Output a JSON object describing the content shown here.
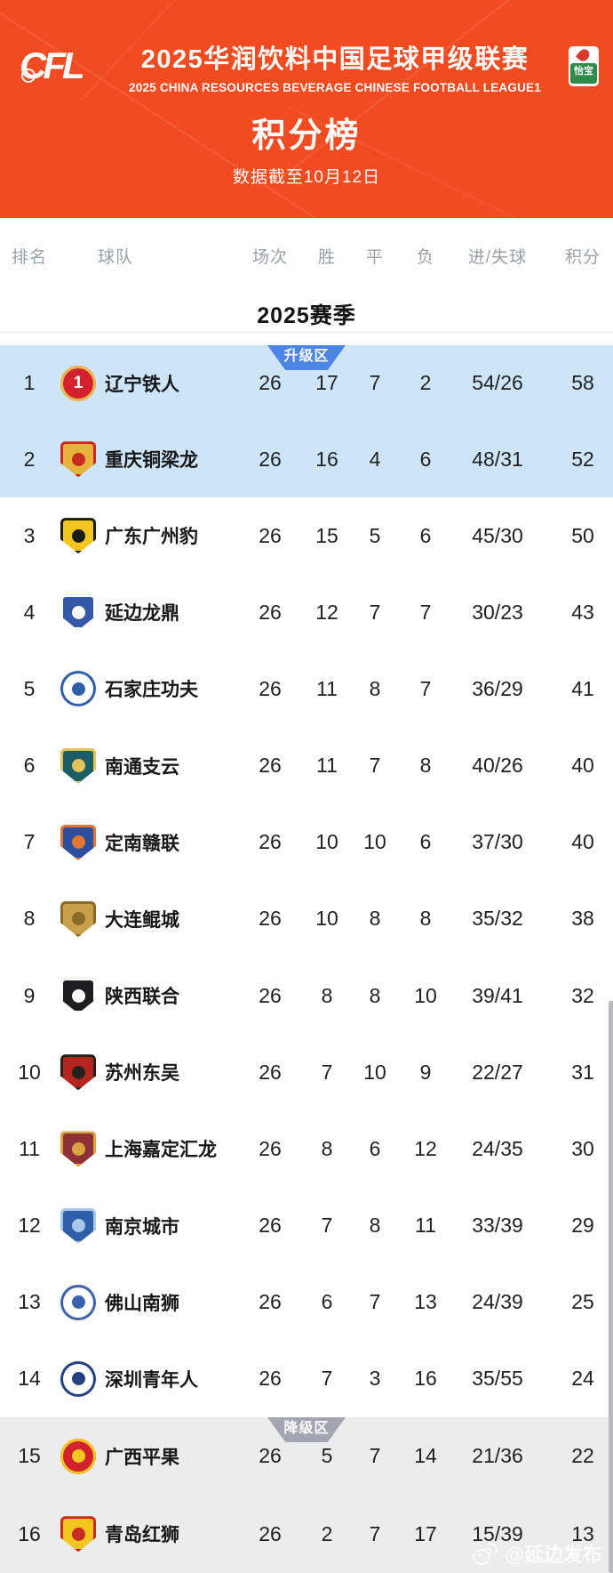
{
  "header": {
    "logo_text": "CFL",
    "title": "2025华润饮料中国足球甲级联赛",
    "subtitle": "2025 CHINA RESOURCES BEVERAGE CHINESE FOOTBALL LEAGUE1",
    "sponsor_name": "怡宝",
    "section_title": "积分榜",
    "data_note": "数据截至10月12日",
    "bg_color": "#F14B21"
  },
  "table": {
    "columns": [
      "排名",
      "球队",
      "场次",
      "胜",
      "平",
      "负",
      "进/失球",
      "积分"
    ],
    "season_title": "2025赛季",
    "promotion_label": "升级区",
    "relegation_label": "降级区",
    "zone_colors": {
      "promotion_badge": "#4C86E4",
      "promotion_bg": "#CEE5F8",
      "relegation_badge": "#A3A6B0",
      "relegation_bg": "#ECECEF"
    },
    "rows": [
      {
        "rank": "1",
        "team": "辽宁铁人",
        "played": "26",
        "wins": "17",
        "draws": "7",
        "losses": "2",
        "goals": "54/26",
        "points": "58",
        "zone": "promotion",
        "logo": {
          "shape": "circle",
          "c1": "#D2222D",
          "c2": "#E9B949",
          "label": "1"
        }
      },
      {
        "rank": "2",
        "team": "重庆铜梁龙",
        "played": "26",
        "wins": "16",
        "draws": "4",
        "losses": "6",
        "goals": "48/31",
        "points": "52",
        "zone": "promotion",
        "logo": {
          "shape": "shield",
          "c1": "#E8B33C",
          "c2": "#C92A21",
          "label": ""
        }
      },
      {
        "rank": "3",
        "team": "广东广州豹",
        "played": "26",
        "wins": "15",
        "draws": "5",
        "losses": "6",
        "goals": "45/30",
        "points": "50",
        "zone": "",
        "logo": {
          "shape": "shield",
          "c1": "#F2C51F",
          "c2": "#1C1C1C",
          "label": ""
        }
      },
      {
        "rank": "4",
        "team": "延边龙鼎",
        "played": "26",
        "wins": "12",
        "draws": "7",
        "losses": "7",
        "goals": "30/23",
        "points": "43",
        "zone": "",
        "logo": {
          "shape": "shield",
          "c1": "#3557A7",
          "c2": "#FFFFFF",
          "label": ""
        }
      },
      {
        "rank": "5",
        "team": "石家庄功夫",
        "played": "26",
        "wins": "11",
        "draws": "8",
        "losses": "7",
        "goals": "36/29",
        "points": "41",
        "zone": "",
        "logo": {
          "shape": "circle",
          "c1": "#FFFFFF",
          "c2": "#2F5FA8",
          "label": ""
        }
      },
      {
        "rank": "6",
        "team": "南通支云",
        "played": "26",
        "wins": "11",
        "draws": "7",
        "losses": "8",
        "goals": "40/26",
        "points": "40",
        "zone": "",
        "logo": {
          "shape": "shield",
          "c1": "#1B5E66",
          "c2": "#E2C35B",
          "label": ""
        }
      },
      {
        "rank": "7",
        "team": "定南赣联",
        "played": "26",
        "wins": "10",
        "draws": "10",
        "losses": "6",
        "goals": "37/30",
        "points": "40",
        "zone": "",
        "logo": {
          "shape": "shield",
          "c1": "#2C4FA0",
          "c2": "#E0762F",
          "label": ""
        }
      },
      {
        "rank": "8",
        "team": "大连鲲城",
        "played": "26",
        "wins": "10",
        "draws": "8",
        "losses": "8",
        "goals": "35/32",
        "points": "38",
        "zone": "",
        "logo": {
          "shape": "shield",
          "c1": "#C9A04A",
          "c2": "#8A6B28",
          "label": ""
        }
      },
      {
        "rank": "9",
        "team": "陕西联合",
        "played": "26",
        "wins": "8",
        "draws": "8",
        "losses": "10",
        "goals": "39/41",
        "points": "32",
        "zone": "",
        "logo": {
          "shape": "shield",
          "c1": "#1E1E24",
          "c2": "#FFFFFF",
          "label": ""
        }
      },
      {
        "rank": "10",
        "team": "苏州东吴",
        "played": "26",
        "wins": "7",
        "draws": "10",
        "losses": "9",
        "goals": "22/27",
        "points": "31",
        "zone": "",
        "logo": {
          "shape": "shield",
          "c1": "#B3271E",
          "c2": "#27211E",
          "label": ""
        }
      },
      {
        "rank": "11",
        "team": "上海嘉定汇龙",
        "played": "26",
        "wins": "8",
        "draws": "6",
        "losses": "12",
        "goals": "24/35",
        "points": "30",
        "zone": "",
        "logo": {
          "shape": "shield",
          "c1": "#8E3038",
          "c2": "#D9A441",
          "label": ""
        }
      },
      {
        "rank": "12",
        "team": "南京城市",
        "played": "26",
        "wins": "7",
        "draws": "8",
        "losses": "11",
        "goals": "33/39",
        "points": "29",
        "zone": "",
        "logo": {
          "shape": "shield",
          "c1": "#2F5FA8",
          "c2": "#A8C8EA",
          "label": ""
        }
      },
      {
        "rank": "13",
        "team": "佛山南狮",
        "played": "26",
        "wins": "6",
        "draws": "7",
        "losses": "13",
        "goals": "24/39",
        "points": "25",
        "zone": "",
        "logo": {
          "shape": "circle",
          "c1": "#FFFFFF",
          "c2": "#3A63AE",
          "label": ""
        }
      },
      {
        "rank": "14",
        "team": "深圳青年人",
        "played": "26",
        "wins": "7",
        "draws": "3",
        "losses": "16",
        "goals": "35/55",
        "points": "24",
        "zone": "",
        "logo": {
          "shape": "circle",
          "c1": "#FFFFFF",
          "c2": "#24407E",
          "label": ""
        }
      },
      {
        "rank": "15",
        "team": "广西平果",
        "played": "26",
        "wins": "5",
        "draws": "7",
        "losses": "14",
        "goals": "21/36",
        "points": "22",
        "zone": "relegation",
        "logo": {
          "shape": "circle",
          "c1": "#D2222D",
          "c2": "#F2C51F",
          "label": ""
        }
      },
      {
        "rank": "16",
        "team": "青岛红狮",
        "played": "26",
        "wins": "2",
        "draws": "7",
        "losses": "17",
        "goals": "15/39",
        "points": "13",
        "zone": "relegation",
        "logo": {
          "shape": "shield",
          "c1": "#F2C51F",
          "c2": "#C92A21",
          "label": ""
        }
      }
    ]
  },
  "watermark": {
    "handle": "@延边发布"
  }
}
